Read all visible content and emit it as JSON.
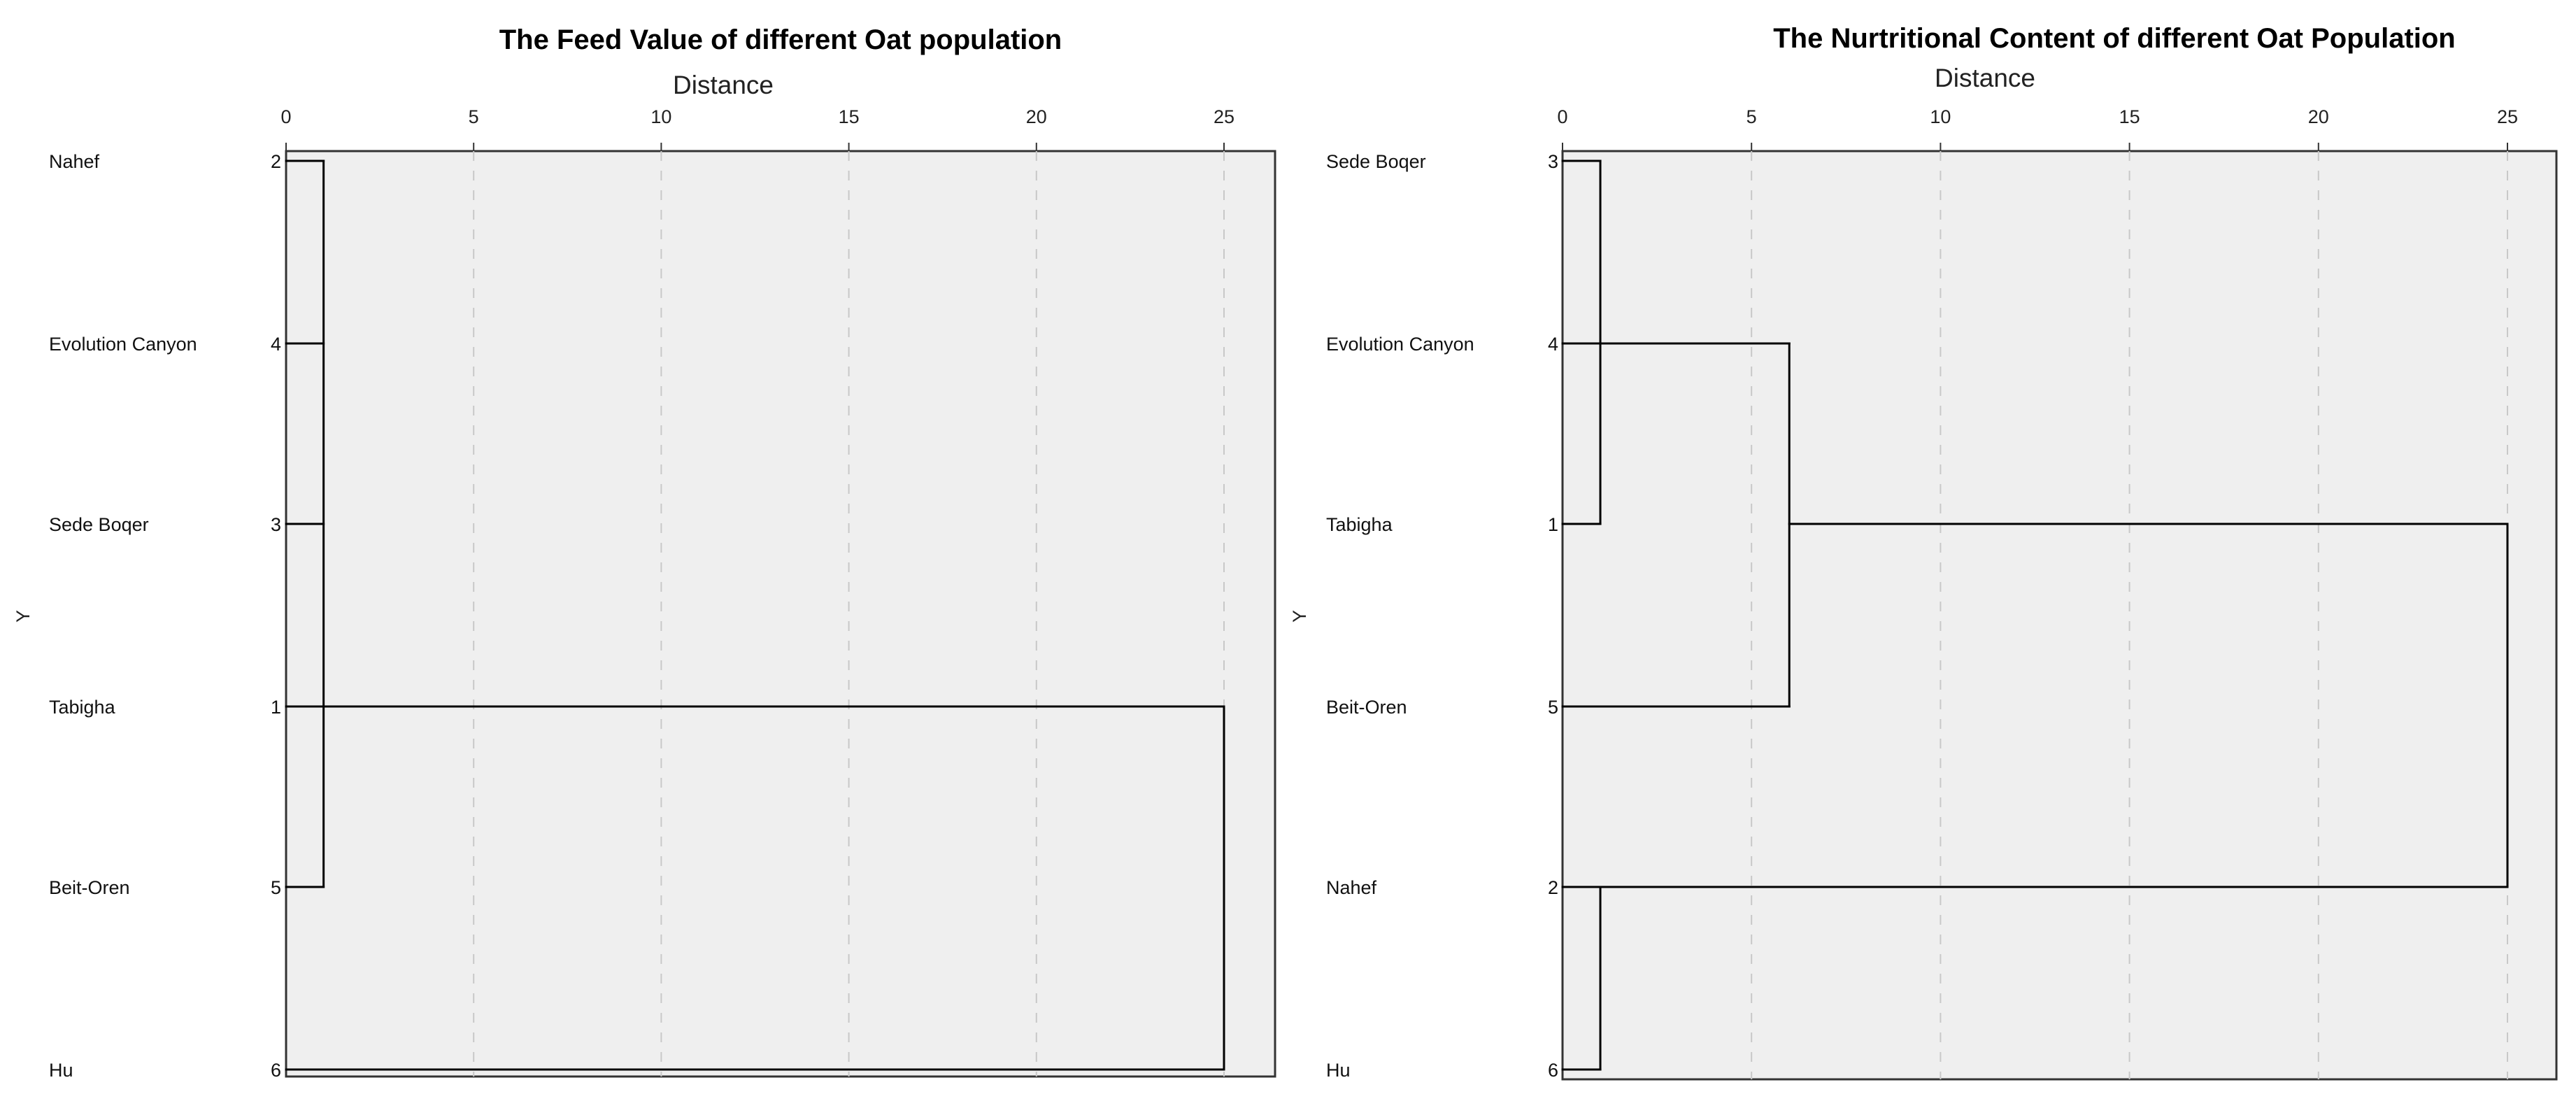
{
  "chart_data": [
    {
      "type": "dendrogram",
      "title": "The Feed Value of different Oat population",
      "xlabel": "Distance",
      "ylabel": "Y",
      "xlim": [
        0,
        26.3
      ],
      "xticks": [
        0,
        5,
        10,
        15,
        20,
        25
      ],
      "grid": true,
      "leaves": [
        {
          "label": "Nahef",
          "id": "2"
        },
        {
          "label": "Evolution Canyon",
          "id": "4"
        },
        {
          "label": "Sede Boqer",
          "id": "3"
        },
        {
          "label": "Tabigha",
          "id": "1"
        },
        {
          "label": "Beit-Oren",
          "id": "5"
        },
        {
          "label": "Hu",
          "id": "6"
        }
      ],
      "segments": [
        [
          0,
          0,
          1,
          0
        ],
        [
          0,
          1,
          1,
          1
        ],
        [
          0,
          2,
          1,
          2
        ],
        [
          0,
          3,
          1,
          3
        ],
        [
          0,
          4,
          1,
          4
        ],
        [
          1,
          0,
          1,
          4
        ],
        [
          1,
          3,
          25,
          3
        ],
        [
          0,
          5,
          25,
          5
        ],
        [
          25,
          3,
          25,
          5
        ]
      ]
    },
    {
      "type": "dendrogram",
      "title": "The Nurtritional Content of different Oat Population",
      "xlabel": "Distance",
      "ylabel": "Y",
      "xlim": [
        0,
        26.3
      ],
      "xticks": [
        0,
        5,
        10,
        15,
        20,
        25
      ],
      "grid": true,
      "leaves": [
        {
          "label": "Sede Boqer",
          "id": "3"
        },
        {
          "label": "Evolution Canyon",
          "id": "4"
        },
        {
          "label": "Tabigha",
          "id": "1"
        },
        {
          "label": "Beit-Oren",
          "id": "5"
        },
        {
          "label": "Nahef",
          "id": "2"
        },
        {
          "label": "Hu",
          "id": "6"
        }
      ],
      "segments": [
        [
          0,
          0,
          1,
          0
        ],
        [
          0,
          1,
          1,
          1
        ],
        [
          0,
          2,
          1,
          2
        ],
        [
          1,
          0,
          1,
          2
        ],
        [
          1,
          1,
          6,
          1
        ],
        [
          0,
          3,
          6,
          3
        ],
        [
          6,
          1,
          6,
          3
        ],
        [
          6,
          2,
          25,
          2
        ],
        [
          0,
          4,
          1,
          4
        ],
        [
          0,
          5,
          1,
          5
        ],
        [
          1,
          4,
          1,
          5
        ],
        [
          1,
          4,
          25,
          4
        ],
        [
          25,
          2,
          25,
          4
        ]
      ]
    }
  ],
  "colors": {
    "plot_bg": "#efefef",
    "line": "#000000",
    "grid": "#c8c8c8"
  }
}
